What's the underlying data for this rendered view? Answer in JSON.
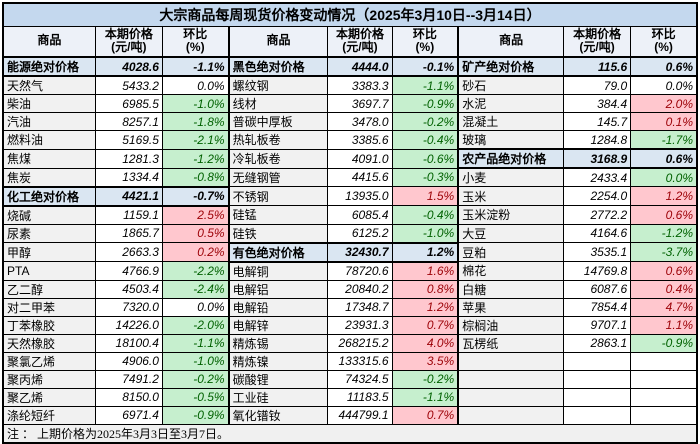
{
  "title": "大宗商品每周现货价格变动情况（2025年3月10日--3月14日）",
  "footnote": "注 ： 上期价格为2025年3月3日至3月7日。",
  "header": {
    "commodity": "商品",
    "price_line1": "本期价格",
    "price_line2": "(元/吨)",
    "ratio_line1": "环比",
    "ratio_line2": "(%)"
  },
  "colors": {
    "title_bg": "#c4d8ee",
    "header_bg": "#edf1f8",
    "category_bg": "#dae6f2",
    "name_bg": "#f1f1f1",
    "footer_bg": "#f0f0f0",
    "up_bg": "#ffc7ce",
    "up_text": "#9c0006",
    "down_bg": "#c6efce",
    "down_text": "#006100"
  },
  "groups": [
    {
      "rows": [
        {
          "n": "能源绝对价格",
          "v": "4028.6",
          "p": "-1.1%",
          "t": "cat"
        },
        {
          "n": "天然气",
          "v": "5433.2",
          "p": "0.0%",
          "t": "flat"
        },
        {
          "n": "柴油",
          "v": "6985.5",
          "p": "-1.0%",
          "t": "down"
        },
        {
          "n": "汽油",
          "v": "8257.1",
          "p": "-1.8%",
          "t": "down"
        },
        {
          "n": "燃料油",
          "v": "5169.5",
          "p": "-2.1%",
          "t": "down"
        },
        {
          "n": "焦煤",
          "v": "1281.3",
          "p": "-1.2%",
          "t": "down"
        },
        {
          "n": "焦炭",
          "v": "1334.4",
          "p": "-0.8%",
          "t": "down"
        },
        {
          "n": "化工绝对价格",
          "v": "4421.1",
          "p": "-0.7%",
          "t": "cat"
        },
        {
          "n": "烧碱",
          "v": "1159.1",
          "p": "2.5%",
          "t": "up"
        },
        {
          "n": "尿素",
          "v": "1865.7",
          "p": "0.5%",
          "t": "up"
        },
        {
          "n": "甲醇",
          "v": "2663.3",
          "p": "0.2%",
          "t": "up"
        },
        {
          "n": "PTA",
          "v": "4766.9",
          "p": "-2.2%",
          "t": "down"
        },
        {
          "n": "乙二醇",
          "v": "4503.4",
          "p": "-2.4%",
          "t": "down"
        },
        {
          "n": "对二甲苯",
          "v": "7320.0",
          "p": "0.0%",
          "t": "flat"
        },
        {
          "n": "丁苯橡胶",
          "v": "14226.0",
          "p": "-2.0%",
          "t": "down"
        },
        {
          "n": "天然橡胶",
          "v": "18100.4",
          "p": "-1.1%",
          "t": "down"
        },
        {
          "n": "聚氯乙烯",
          "v": "4906.0",
          "p": "-1.0%",
          "t": "down"
        },
        {
          "n": "聚丙烯",
          "v": "7491.2",
          "p": "-0.2%",
          "t": "down"
        },
        {
          "n": "聚乙烯",
          "v": "8150.0",
          "p": "-0.5%",
          "t": "down"
        },
        {
          "n": "涤纶短纤",
          "v": "6971.4",
          "p": "-0.9%",
          "t": "down"
        }
      ]
    },
    {
      "rows": [
        {
          "n": "黑色绝对价格",
          "v": "4444.0",
          "p": "-0.1%",
          "t": "cat"
        },
        {
          "n": "螺纹钢",
          "v": "3383.3",
          "p": "-1.1%",
          "t": "down"
        },
        {
          "n": "线材",
          "v": "3697.7",
          "p": "-0.9%",
          "t": "down"
        },
        {
          "n": "普碳中厚板",
          "v": "3478.0",
          "p": "-0.2%",
          "t": "down"
        },
        {
          "n": "热轧板卷",
          "v": "3385.6",
          "p": "-0.4%",
          "t": "down"
        },
        {
          "n": "冷轧板卷",
          "v": "4091.0",
          "p": "-0.6%",
          "t": "down"
        },
        {
          "n": "无缝钢管",
          "v": "4415.6",
          "p": "-0.3%",
          "t": "down"
        },
        {
          "n": "不锈钢",
          "v": "13935.0",
          "p": "1.5%",
          "t": "up"
        },
        {
          "n": "硅锰",
          "v": "6085.4",
          "p": "-0.4%",
          "t": "down"
        },
        {
          "n": "硅铁",
          "v": "6125.2",
          "p": "-1.0%",
          "t": "down"
        },
        {
          "n": "有色绝对价格",
          "v": "32430.7",
          "p": "1.2%",
          "t": "cat"
        },
        {
          "n": "电解铜",
          "v": "78720.6",
          "p": "1.6%",
          "t": "up"
        },
        {
          "n": "电解铝",
          "v": "20840.2",
          "p": "0.8%",
          "t": "up"
        },
        {
          "n": "电解铅",
          "v": "17348.7",
          "p": "1.2%",
          "t": "up"
        },
        {
          "n": "电解锌",
          "v": "23931.3",
          "p": "0.7%",
          "t": "up"
        },
        {
          "n": "精炼锡",
          "v": "268215.2",
          "p": "4.0%",
          "t": "up"
        },
        {
          "n": "精炼镍",
          "v": "133315.6",
          "p": "3.5%",
          "t": "up"
        },
        {
          "n": "碳酸锂",
          "v": "74324.5",
          "p": "-0.2%",
          "t": "down"
        },
        {
          "n": "工业硅",
          "v": "11183.5",
          "p": "-1.1%",
          "t": "down"
        },
        {
          "n": "氧化镨钕",
          "v": "444799.1",
          "p": "0.7%",
          "t": "up"
        }
      ]
    },
    {
      "rows": [
        {
          "n": "矿产绝对价格",
          "v": "115.6",
          "p": "0.6%",
          "t": "cat"
        },
        {
          "n": "砂石",
          "v": "79.0",
          "p": "0.0%",
          "t": "flat"
        },
        {
          "n": "水泥",
          "v": "384.4",
          "p": "2.0%",
          "t": "up"
        },
        {
          "n": "混凝土",
          "v": "145.7",
          "p": "0.1%",
          "t": "up"
        },
        {
          "n": "玻璃",
          "v": "1284.8",
          "p": "-1.7%",
          "t": "down"
        },
        {
          "n": "农产品绝对价格",
          "v": "3168.9",
          "p": "0.6%",
          "t": "cat"
        },
        {
          "n": "小麦",
          "v": "2433.4",
          "p": "0.0%",
          "t": "down"
        },
        {
          "n": "玉米",
          "v": "2254.0",
          "p": "1.2%",
          "t": "up"
        },
        {
          "n": "玉米淀粉",
          "v": "2772.2",
          "p": "0.6%",
          "t": "up"
        },
        {
          "n": "大豆",
          "v": "4164.6",
          "p": "-1.2%",
          "t": "down"
        },
        {
          "n": "豆粕",
          "v": "3535.1",
          "p": "-3.7%",
          "t": "down"
        },
        {
          "n": "棉花",
          "v": "14769.8",
          "p": "0.6%",
          "t": "up"
        },
        {
          "n": "白糖",
          "v": "6087.6",
          "p": "0.4%",
          "t": "up"
        },
        {
          "n": "苹果",
          "v": "7854.4",
          "p": "4.7%",
          "t": "up"
        },
        {
          "n": "棕榈油",
          "v": "9707.1",
          "p": "1.1%",
          "t": "up"
        },
        {
          "n": "瓦楞纸",
          "v": "2863.1",
          "p": "-0.9%",
          "t": "down"
        },
        {
          "n": "",
          "v": "",
          "p": "",
          "t": "empty"
        },
        {
          "n": "",
          "v": "",
          "p": "",
          "t": "empty"
        },
        {
          "n": "",
          "v": "",
          "p": "",
          "t": "empty"
        },
        {
          "n": "",
          "v": "",
          "p": "",
          "t": "empty"
        }
      ]
    }
  ]
}
